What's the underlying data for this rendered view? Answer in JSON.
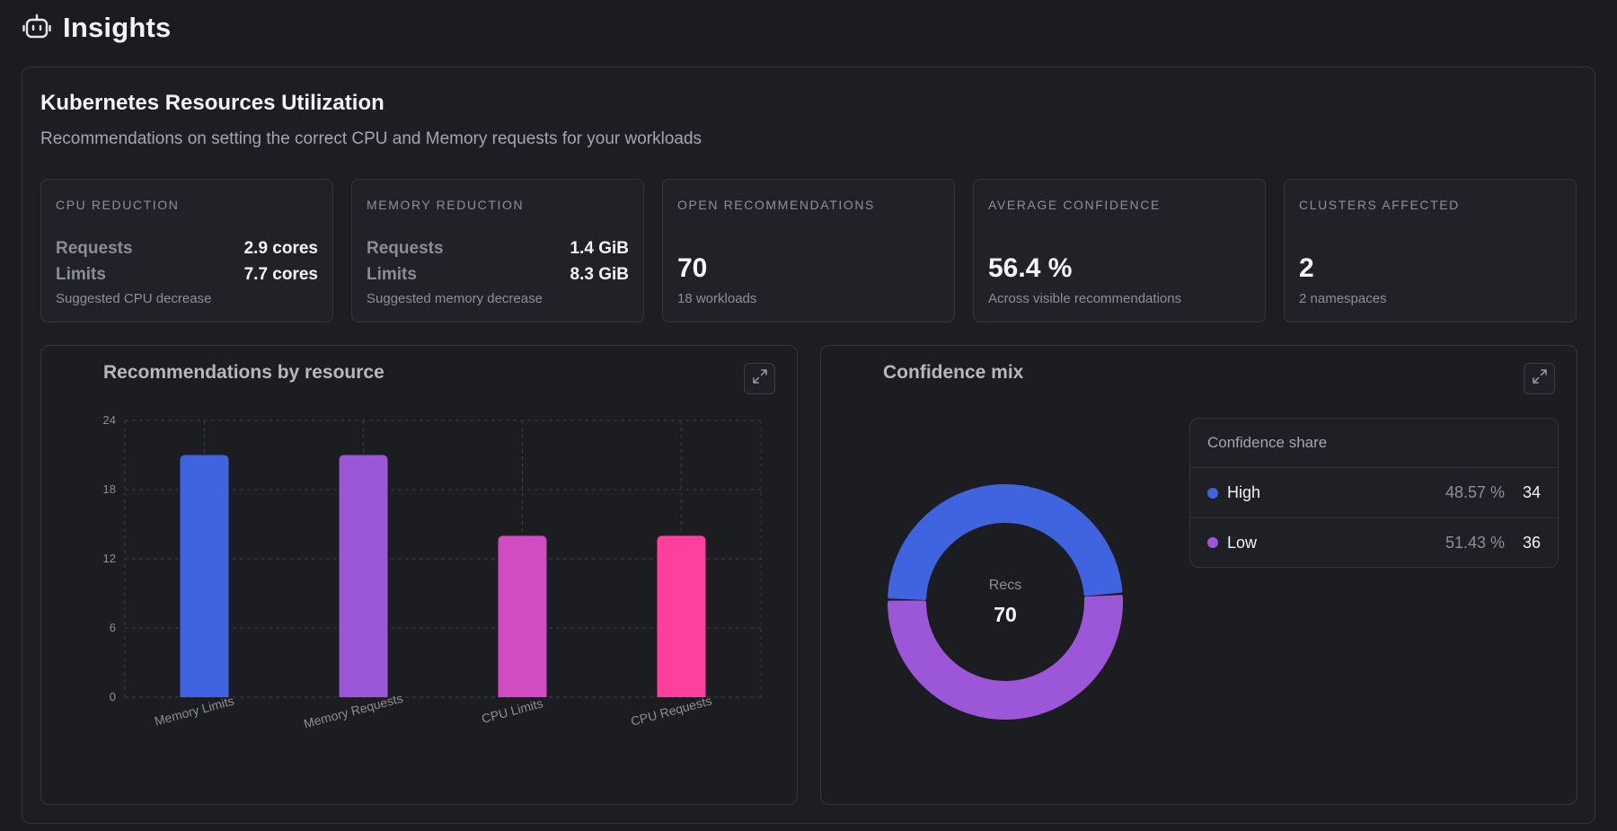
{
  "header": {
    "title": "Insights",
    "icon": "robot-icon"
  },
  "panel": {
    "title": "Kubernetes Resources Utilization",
    "subtitle": "Recommendations on setting the correct CPU and Memory requests for your workloads"
  },
  "stats": {
    "cpu": {
      "label": "CPU REDUCTION",
      "requests_label": "Requests",
      "requests_value": "2.9 cores",
      "limits_label": "Limits",
      "limits_value": "7.7 cores",
      "note": "Suggested CPU decrease"
    },
    "memory": {
      "label": "MEMORY REDUCTION",
      "requests_label": "Requests",
      "requests_value": "1.4 GiB",
      "limits_label": "Limits",
      "limits_value": "8.3 GiB",
      "note": "Suggested memory decrease"
    },
    "open": {
      "label": "OPEN RECOMMENDATIONS",
      "value": "70",
      "note": "18 workloads"
    },
    "confidence": {
      "label": "AVERAGE CONFIDENCE",
      "value": "56.4 %",
      "note": "Across visible recommendations"
    },
    "clusters": {
      "label": "CLUSTERS AFFECTED",
      "value": "2",
      "note": "2 namespaces"
    }
  },
  "bar_card": {
    "title": "Recommendations by resource",
    "expand_icon": "expand-icon"
  },
  "donut_card": {
    "title": "Confidence mix",
    "expand_icon": "expand-icon",
    "center_label": "Recs",
    "center_value": "70",
    "legend_title": "Confidence share",
    "legend": [
      {
        "name": "High",
        "pct": "48.57 %",
        "count": "34",
        "color": "#4063e0"
      },
      {
        "name": "Low",
        "pct": "51.43 %",
        "count": "36",
        "color": "#9b57d8"
      }
    ]
  },
  "chart_data": [
    {
      "type": "bar",
      "title": "Recommendations by resource",
      "categories": [
        "Memory Limits",
        "Memory Requests",
        "CPU Limits",
        "CPU Requests"
      ],
      "values": [
        21,
        21,
        14,
        14
      ],
      "colors": [
        "#4063e0",
        "#9b57d8",
        "#d14bc2",
        "#ff3f9e"
      ],
      "ylim": [
        0,
        24
      ],
      "yticks": [
        0,
        6,
        12,
        18,
        24
      ],
      "grid": true
    },
    {
      "type": "pie",
      "title": "Confidence mix",
      "categories": [
        "High",
        "Low"
      ],
      "values": [
        34,
        36
      ],
      "colors": [
        "#4063e0",
        "#9b57d8"
      ]
    }
  ]
}
